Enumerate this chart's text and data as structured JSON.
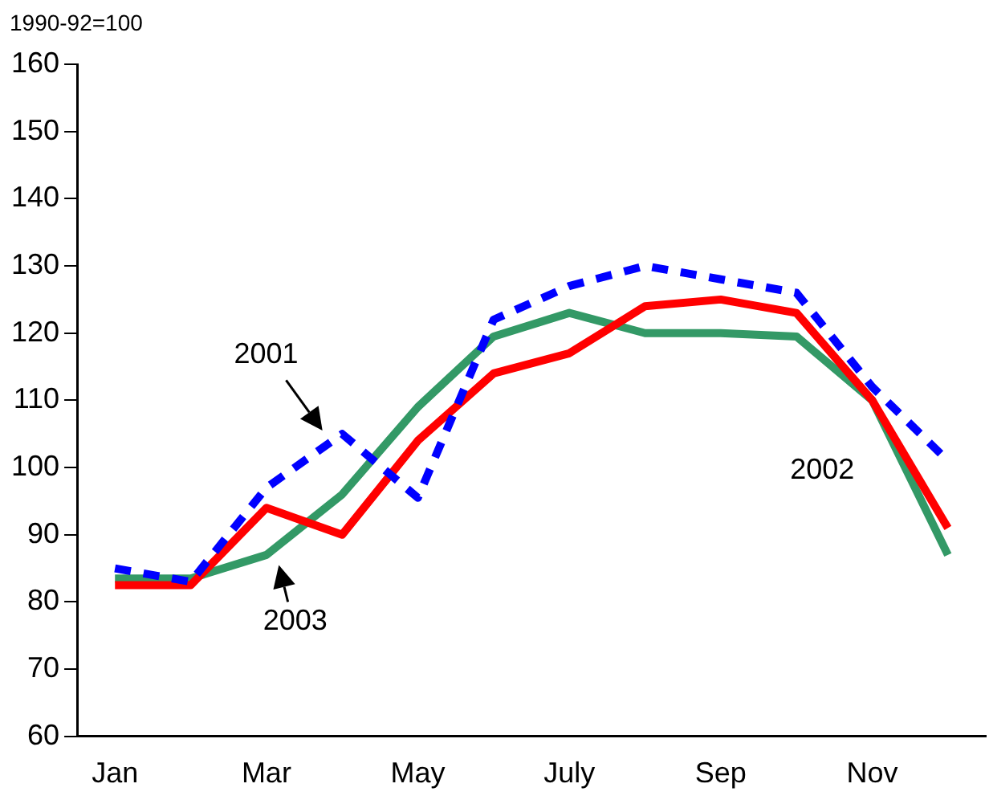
{
  "chart_data": {
    "type": "line",
    "ylabel": "1990-92=100",
    "categories": [
      "Jan",
      null,
      "Mar",
      null,
      "May",
      null,
      "July",
      null,
      "Sep",
      null,
      "Nov",
      null
    ],
    "series": [
      {
        "name": "2001",
        "color": "#0000ff",
        "line_style": "dashed",
        "values": [
          85,
          83,
          97,
          105,
          95.5,
          122,
          127,
          130,
          128,
          126,
          112,
          101
        ]
      },
      {
        "name": "2002",
        "color": "#ff0000",
        "line_style": "solid",
        "values": [
          82.5,
          82.5,
          94,
          90,
          104,
          114,
          117,
          124,
          125,
          123,
          110,
          91
        ]
      },
      {
        "name": "2003",
        "color": "#339966",
        "line_style": "solid",
        "values": [
          83.5,
          83.5,
          87,
          96,
          109,
          119.5,
          123,
          120,
          120,
          119.5,
          110,
          87
        ]
      }
    ],
    "ylim": [
      60,
      160
    ],
    "yticks": [
      60,
      70,
      80,
      90,
      100,
      110,
      120,
      130,
      140,
      150,
      160
    ],
    "grid": false,
    "legend": false,
    "marker": "none"
  }
}
